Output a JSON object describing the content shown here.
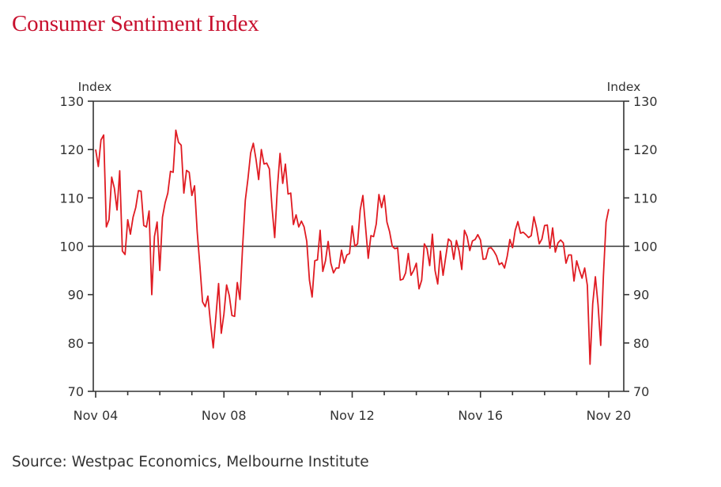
{
  "title": "Consumer Sentiment Index",
  "source": "Source: Westpac Economics, Melbourne Institute",
  "colors": {
    "title": "#c8102e",
    "line": "#e01b22",
    "axis": "#333333"
  },
  "chart_data": {
    "type": "line",
    "title": "Consumer Sentiment Index",
    "ylabel_left": "Index",
    "ylabel_right": "Index",
    "ylim": [
      70,
      130
    ],
    "yticks": [
      70,
      80,
      90,
      100,
      110,
      120,
      130
    ],
    "ytick_labels": [
      "70",
      "80",
      "90",
      "100",
      "110",
      "120",
      "130"
    ],
    "xlim": [
      "2004-11",
      "2020-11"
    ],
    "x_tick_labels": [
      "Nov 04",
      "Nov 08",
      "Nov 12",
      "Nov 16",
      "Nov 20"
    ],
    "reference_line": 100,
    "grid": false,
    "series": [
      {
        "values": [
          [
            "2004-11",
            120
          ],
          [
            "2004-12",
            116.5
          ],
          [
            "2005-01",
            122
          ],
          [
            "2005-02",
            123
          ],
          [
            "2005-03",
            104
          ],
          [
            "2005-04",
            105.5
          ],
          [
            "2005-05",
            114.3
          ],
          [
            "2005-06",
            112
          ],
          [
            "2005-07",
            107.5
          ],
          [
            "2005-08",
            115.6
          ],
          [
            "2005-09",
            99
          ],
          [
            "2005-10",
            98.3
          ],
          [
            "2005-11",
            105.5
          ],
          [
            "2005-12",
            102.5
          ],
          [
            "2006-01",
            106
          ],
          [
            "2006-02",
            108
          ],
          [
            "2006-03",
            111.5
          ],
          [
            "2006-04",
            111.4
          ],
          [
            "2006-05",
            104.3
          ],
          [
            "2006-06",
            104
          ],
          [
            "2006-07",
            107.3
          ],
          [
            "2006-08",
            90
          ],
          [
            "2006-09",
            102
          ],
          [
            "2006-10",
            105
          ],
          [
            "2006-11",
            95
          ],
          [
            "2006-12",
            106
          ],
          [
            "2007-01",
            109
          ],
          [
            "2007-02",
            111
          ],
          [
            "2007-03",
            115.5
          ],
          [
            "2007-04",
            115.3
          ],
          [
            "2007-05",
            124
          ],
          [
            "2007-06",
            121.5
          ],
          [
            "2007-07",
            120.9
          ],
          [
            "2007-08",
            111
          ],
          [
            "2007-09",
            115.7
          ],
          [
            "2007-10",
            115.3
          ],
          [
            "2007-11",
            110.5
          ],
          [
            "2007-12",
            112.5
          ],
          [
            "2008-01",
            103
          ],
          [
            "2008-02",
            96
          ],
          [
            "2008-03",
            88.5
          ],
          [
            "2008-04",
            87.5
          ],
          [
            "2008-05",
            89.7
          ],
          [
            "2008-06",
            84
          ],
          [
            "2008-07",
            79
          ],
          [
            "2008-08",
            85.5
          ],
          [
            "2008-09",
            92.3
          ],
          [
            "2008-10",
            82
          ],
          [
            "2008-11",
            86
          ],
          [
            "2008-12",
            92
          ],
          [
            "2009-01",
            89.8
          ],
          [
            "2009-02",
            85.7
          ],
          [
            "2009-03",
            85.5
          ],
          [
            "2009-04",
            92.5
          ],
          [
            "2009-05",
            89
          ],
          [
            "2009-06",
            100
          ],
          [
            "2009-07",
            109.5
          ],
          [
            "2009-08",
            114
          ],
          [
            "2009-09",
            119.3
          ],
          [
            "2009-10",
            121.3
          ],
          [
            "2009-11",
            118
          ],
          [
            "2009-12",
            113.8
          ],
          [
            "2010-01",
            120
          ],
          [
            "2010-02",
            117
          ],
          [
            "2010-03",
            117.2
          ],
          [
            "2010-04",
            116
          ],
          [
            "2010-05",
            108
          ],
          [
            "2010-06",
            101.8
          ],
          [
            "2010-07",
            112
          ],
          [
            "2010-08",
            119.2
          ],
          [
            "2010-09",
            113
          ],
          [
            "2010-10",
            117
          ],
          [
            "2010-11",
            110.8
          ],
          [
            "2010-12",
            111
          ],
          [
            "2011-01",
            104.5
          ],
          [
            "2011-02",
            106.5
          ],
          [
            "2011-03",
            104
          ],
          [
            "2011-04",
            105.2
          ],
          [
            "2011-05",
            104
          ],
          [
            "2011-06",
            101
          ],
          [
            "2011-07",
            93
          ],
          [
            "2011-08",
            89.5
          ],
          [
            "2011-09",
            97
          ],
          [
            "2011-10",
            97.2
          ],
          [
            "2011-11",
            103.3
          ],
          [
            "2011-12",
            94.8
          ],
          [
            "2012-01",
            97
          ],
          [
            "2012-02",
            101
          ],
          [
            "2012-03",
            96.5
          ],
          [
            "2012-04",
            94.5
          ],
          [
            "2012-05",
            95.5
          ],
          [
            "2012-06",
            95.5
          ],
          [
            "2012-07",
            99.2
          ],
          [
            "2012-08",
            96.5
          ],
          [
            "2012-09",
            98.2
          ],
          [
            "2012-10",
            98.5
          ],
          [
            "2012-11",
            104.2
          ],
          [
            "2012-12",
            100
          ],
          [
            "2013-01",
            100.5
          ],
          [
            "2013-02",
            107.5
          ],
          [
            "2013-03",
            110.5
          ],
          [
            "2013-04",
            104
          ],
          [
            "2013-05",
            97.5
          ],
          [
            "2013-06",
            102.2
          ],
          [
            "2013-07",
            102
          ],
          [
            "2013-08",
            104.6
          ],
          [
            "2013-09",
            110.7
          ],
          [
            "2013-10",
            108
          ],
          [
            "2013-11",
            110.5
          ],
          [
            "2013-12",
            105
          ],
          [
            "2014-01",
            103
          ],
          [
            "2014-02",
            100
          ],
          [
            "2014-03",
            99.5
          ],
          [
            "2014-04",
            99.7
          ],
          [
            "2014-05",
            93
          ],
          [
            "2014-06",
            93.2
          ],
          [
            "2014-07",
            94.5
          ],
          [
            "2014-08",
            98.5
          ],
          [
            "2014-09",
            94
          ],
          [
            "2014-10",
            95
          ],
          [
            "2014-11",
            96.5
          ],
          [
            "2014-12",
            91.2
          ],
          [
            "2015-01",
            93
          ],
          [
            "2015-02",
            100.5
          ],
          [
            "2015-03",
            99.5
          ],
          [
            "2015-04",
            96
          ],
          [
            "2015-05",
            102.5
          ],
          [
            "2015-06",
            95
          ],
          [
            "2015-07",
            92.2
          ],
          [
            "2015-08",
            99
          ],
          [
            "2015-09",
            94
          ],
          [
            "2015-10",
            97.8
          ],
          [
            "2015-11",
            101.5
          ],
          [
            "2015-12",
            101
          ],
          [
            "2016-01",
            97.3
          ],
          [
            "2016-02",
            101.2
          ],
          [
            "2016-03",
            99
          ],
          [
            "2016-04",
            95.2
          ],
          [
            "2016-05",
            103.3
          ],
          [
            "2016-06",
            102
          ],
          [
            "2016-07",
            99.1
          ],
          [
            "2016-08",
            101.1
          ],
          [
            "2016-09",
            101.4
          ],
          [
            "2016-10",
            102.4
          ],
          [
            "2016-11",
            101.3
          ],
          [
            "2016-12",
            97.3
          ],
          [
            "2017-01",
            97.4
          ],
          [
            "2017-02",
            99.6
          ],
          [
            "2017-03",
            99.7
          ],
          [
            "2017-04",
            99
          ],
          [
            "2017-05",
            98
          ],
          [
            "2017-06",
            96.2
          ],
          [
            "2017-07",
            96.6
          ],
          [
            "2017-08",
            95.5
          ],
          [
            "2017-09",
            97.9
          ],
          [
            "2017-10",
            101.4
          ],
          [
            "2017-11",
            99.7
          ],
          [
            "2017-12",
            103.3
          ],
          [
            "2018-01",
            105.1
          ],
          [
            "2018-02",
            102.7
          ],
          [
            "2018-03",
            102.9
          ],
          [
            "2018-04",
            102.4
          ],
          [
            "2018-05",
            101.8
          ],
          [
            "2018-06",
            102.2
          ],
          [
            "2018-07",
            106.1
          ],
          [
            "2018-08",
            103.7
          ],
          [
            "2018-09",
            100.5
          ],
          [
            "2018-10",
            101.5
          ],
          [
            "2018-11",
            104.3
          ],
          [
            "2018-12",
            104.4
          ],
          [
            "2019-01",
            99.6
          ],
          [
            "2019-02",
            103.8
          ],
          [
            "2019-03",
            98.8
          ],
          [
            "2019-04",
            100.7
          ],
          [
            "2019-05",
            101.3
          ],
          [
            "2019-06",
            100.7
          ],
          [
            "2019-07",
            96.5
          ],
          [
            "2019-08",
            98.2
          ],
          [
            "2019-09",
            98.2
          ],
          [
            "2019-10",
            92.8
          ],
          [
            "2019-11",
            97
          ],
          [
            "2019-12",
            95.1
          ],
          [
            "2020-01",
            93.4
          ],
          [
            "2020-02",
            95.5
          ],
          [
            "2020-03",
            91.9
          ],
          [
            "2020-04",
            75.6
          ],
          [
            "2020-05",
            88.1
          ],
          [
            "2020-06",
            93.7
          ],
          [
            "2020-07",
            87.9
          ],
          [
            "2020-08",
            79.5
          ],
          [
            "2020-09",
            93.8
          ],
          [
            "2020-10",
            105
          ],
          [
            "2020-11",
            107.7
          ]
        ]
      }
    ]
  }
}
